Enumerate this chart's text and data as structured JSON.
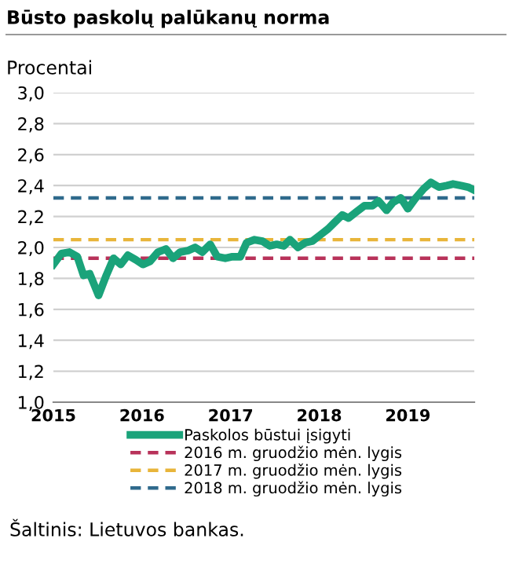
{
  "chart_data": {
    "type": "line",
    "title": "Būsto paskolų palūkanų norma",
    "ylabel": "Procentai",
    "x": [
      2015.0,
      2015.09,
      2015.18,
      2015.27,
      2015.34,
      2015.41,
      2015.51,
      2015.59,
      2015.68,
      2015.76,
      2015.84,
      2015.93,
      2016.01,
      2016.09,
      2016.18,
      2016.27,
      2016.35,
      2016.43,
      2016.52,
      2016.6,
      2016.68,
      2016.77,
      2016.85,
      2016.94,
      2017.02,
      2017.11,
      2017.18,
      2017.27,
      2017.36,
      2017.44,
      2017.52,
      2017.6,
      2017.67,
      2017.76,
      2017.84,
      2017.92,
      2018.01,
      2018.1,
      2018.17,
      2018.26,
      2018.33,
      2018.42,
      2018.51,
      2018.6,
      2018.67,
      2018.76,
      2018.83,
      2018.92,
      2019.0,
      2019.09,
      2019.18,
      2019.26,
      2019.35,
      2019.44,
      2019.51,
      2019.6,
      2019.68,
      2019.75
    ],
    "series": [
      {
        "name": "Paskolos būstui įsigyti",
        "color": "#1aa37a",
        "values": [
          1.89,
          1.96,
          1.97,
          1.94,
          1.82,
          1.83,
          1.69,
          1.81,
          1.93,
          1.89,
          1.95,
          1.92,
          1.89,
          1.91,
          1.97,
          1.99,
          1.93,
          1.97,
          1.98,
          2.0,
          1.97,
          2.02,
          1.94,
          1.93,
          1.94,
          1.94,
          2.03,
          2.05,
          2.04,
          2.01,
          2.02,
          2.01,
          2.05,
          2.0,
          2.03,
          2.04,
          2.08,
          2.12,
          2.16,
          2.21,
          2.19,
          2.23,
          2.27,
          2.27,
          2.3,
          2.24,
          2.29,
          2.32,
          2.25,
          2.32,
          2.38,
          2.42,
          2.39,
          2.4,
          2.41,
          2.4,
          2.39,
          2.37
        ]
      }
    ],
    "ref_lines": [
      {
        "axis": "y",
        "value": 1.93,
        "label": "2016 m. gruodžio mėn. lygis",
        "color": "#b8325a",
        "line_style": "dashed"
      },
      {
        "axis": "y",
        "value": 2.05,
        "label": "2017 m. gruodžio mėn. lygis",
        "color": "#e8b53a",
        "line_style": "dashed"
      },
      {
        "axis": "y",
        "value": 2.32,
        "label": "2018 m. gruodžio mėn. lygis",
        "color": "#2f6a8c",
        "line_style": "dashed"
      }
    ],
    "xlim": [
      2015,
      2019.75
    ],
    "xticks": [
      2015,
      2016,
      2017,
      2018,
      2019
    ],
    "ylim": [
      1.0,
      3.0
    ],
    "yticks": [
      {
        "value": 1.0,
        "label": "1,0"
      },
      {
        "value": 1.2,
        "label": "1,2"
      },
      {
        "value": 1.4,
        "label": "1,4"
      },
      {
        "value": 1.6,
        "label": "1,6"
      },
      {
        "value": 1.8,
        "label": "1,8"
      },
      {
        "value": 2.0,
        "label": "2,0"
      },
      {
        "value": 2.2,
        "label": "2,2"
      },
      {
        "value": 2.4,
        "label": "2,4"
      },
      {
        "value": 2.6,
        "label": "2,6"
      },
      {
        "value": 2.8,
        "label": "2,8"
      },
      {
        "value": 3.0,
        "label": "3,0"
      }
    ],
    "grid": "y",
    "legend": "bottom",
    "line_style": "solid",
    "marker": "none",
    "annotations": [
      "Šaltinis: Lietuvos bankas."
    ]
  }
}
